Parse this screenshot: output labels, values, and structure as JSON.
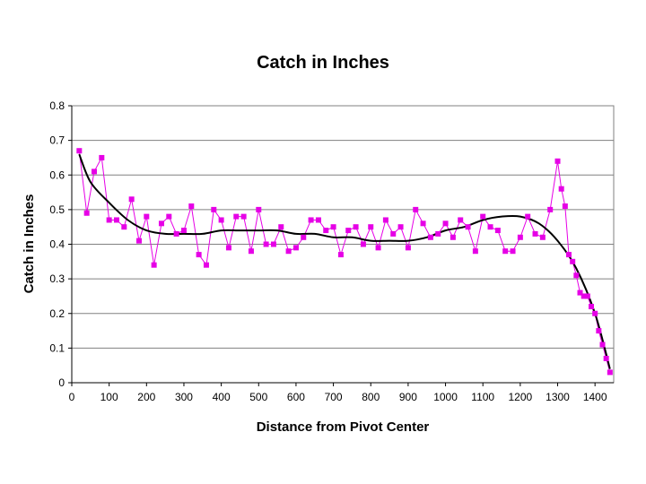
{
  "chart_data": {
    "type": "line",
    "title": "Catch in Inches",
    "xlabel": "Distance from Pivot Center",
    "ylabel": "Catch in Inches",
    "xlim": [
      0,
      1450
    ],
    "ylim": [
      0,
      0.8
    ],
    "x_ticks": [
      0,
      100,
      200,
      300,
      400,
      500,
      600,
      700,
      800,
      900,
      1000,
      1100,
      1200,
      1300,
      1400
    ],
    "y_ticks": [
      0,
      0.1,
      0.2,
      0.3,
      0.4,
      0.5,
      0.6,
      0.7,
      0.8
    ],
    "x_tick_labels": [
      "0",
      "100",
      "200",
      "300",
      "400",
      "500",
      "600",
      "700",
      "800",
      "900",
      "1000",
      "1100",
      "1200",
      "1300",
      "1400"
    ],
    "y_tick_labels": [
      "0",
      "0.1",
      "0.2",
      "0.3",
      "0.4",
      "0.5",
      "0.6",
      "0.7",
      "0.8"
    ],
    "grid": "horizontal",
    "legend": "none",
    "series": [
      {
        "color": "#e600e6",
        "marker": "square",
        "points": [
          [
            20,
            0.67
          ],
          [
            40,
            0.49
          ],
          [
            60,
            0.61
          ],
          [
            80,
            0.65
          ],
          [
            100,
            0.47
          ],
          [
            120,
            0.47
          ],
          [
            140,
            0.45
          ],
          [
            160,
            0.53
          ],
          [
            180,
            0.41
          ],
          [
            200,
            0.48
          ],
          [
            220,
            0.34
          ],
          [
            240,
            0.46
          ],
          [
            260,
            0.48
          ],
          [
            280,
            0.43
          ],
          [
            300,
            0.44
          ],
          [
            320,
            0.51
          ],
          [
            340,
            0.37
          ],
          [
            360,
            0.34
          ],
          [
            380,
            0.5
          ],
          [
            400,
            0.47
          ],
          [
            420,
            0.39
          ],
          [
            440,
            0.48
          ],
          [
            460,
            0.48
          ],
          [
            480,
            0.38
          ],
          [
            500,
            0.5
          ],
          [
            520,
            0.4
          ],
          [
            540,
            0.4
          ],
          [
            560,
            0.45
          ],
          [
            580,
            0.38
          ],
          [
            600,
            0.39
          ],
          [
            620,
            0.42
          ],
          [
            640,
            0.47
          ],
          [
            660,
            0.47
          ],
          [
            680,
            0.44
          ],
          [
            700,
            0.45
          ],
          [
            720,
            0.37
          ],
          [
            740,
            0.44
          ],
          [
            760,
            0.45
          ],
          [
            780,
            0.4
          ],
          [
            800,
            0.45
          ],
          [
            820,
            0.39
          ],
          [
            840,
            0.47
          ],
          [
            860,
            0.43
          ],
          [
            880,
            0.45
          ],
          [
            900,
            0.39
          ],
          [
            920,
            0.5
          ],
          [
            940,
            0.46
          ],
          [
            960,
            0.42
          ],
          [
            980,
            0.43
          ],
          [
            1000,
            0.46
          ],
          [
            1020,
            0.42
          ],
          [
            1040,
            0.47
          ],
          [
            1060,
            0.45
          ],
          [
            1080,
            0.38
          ],
          [
            1100,
            0.48
          ],
          [
            1120,
            0.45
          ],
          [
            1140,
            0.44
          ],
          [
            1160,
            0.38
          ],
          [
            1180,
            0.38
          ],
          [
            1200,
            0.42
          ],
          [
            1220,
            0.48
          ],
          [
            1240,
            0.43
          ],
          [
            1260,
            0.42
          ],
          [
            1280,
            0.5
          ],
          [
            1300,
            0.64
          ],
          [
            1310,
            0.56
          ],
          [
            1320,
            0.51
          ],
          [
            1330,
            0.37
          ],
          [
            1340,
            0.35
          ],
          [
            1350,
            0.31
          ],
          [
            1360,
            0.26
          ],
          [
            1370,
            0.25
          ],
          [
            1380,
            0.25
          ],
          [
            1390,
            0.22
          ],
          [
            1400,
            0.2
          ],
          [
            1410,
            0.15
          ],
          [
            1420,
            0.11
          ],
          [
            1430,
            0.07
          ],
          [
            1440,
            0.03
          ]
        ]
      },
      {
        "type": "trendline",
        "color": "#000000",
        "points": [
          [
            20,
            0.66
          ],
          [
            50,
            0.58
          ],
          [
            100,
            0.52
          ],
          [
            150,
            0.47
          ],
          [
            200,
            0.44
          ],
          [
            250,
            0.43
          ],
          [
            300,
            0.43
          ],
          [
            350,
            0.43
          ],
          [
            400,
            0.44
          ],
          [
            450,
            0.44
          ],
          [
            500,
            0.44
          ],
          [
            550,
            0.44
          ],
          [
            600,
            0.43
          ],
          [
            650,
            0.43
          ],
          [
            700,
            0.42
          ],
          [
            750,
            0.42
          ],
          [
            800,
            0.41
          ],
          [
            850,
            0.41
          ],
          [
            900,
            0.41
          ],
          [
            950,
            0.42
          ],
          [
            1000,
            0.44
          ],
          [
            1050,
            0.45
          ],
          [
            1100,
            0.47
          ],
          [
            1150,
            0.48
          ],
          [
            1200,
            0.48
          ],
          [
            1250,
            0.46
          ],
          [
            1300,
            0.41
          ],
          [
            1350,
            0.33
          ],
          [
            1400,
            0.2
          ],
          [
            1440,
            0.04
          ]
        ]
      }
    ]
  }
}
